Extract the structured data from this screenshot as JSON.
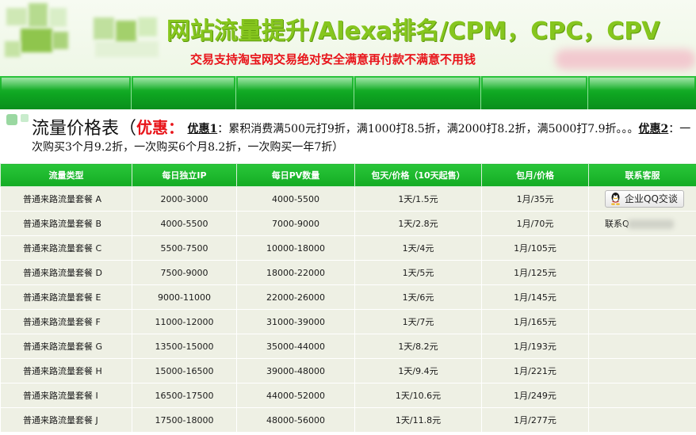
{
  "banner": {
    "title": "网站流量提升/Alexa排名/CPM，CPC，CPV",
    "subtitle": "交易支持淘宝网交易绝对安全满意再付款不满意不用钱"
  },
  "pricing": {
    "heading": "流量价格表",
    "open_paren": "（",
    "discount_label": "优惠：",
    "promo1_label": "优惠1",
    "promo1_text": "：累积消费满500元打9折，满1000打8.5折，满2000打8.2折，满5000打7.9折。。。",
    "promo2_label": "优惠2",
    "promo2_text": "：一次购买3个月9.2折，一次购买6个月8.2折，一次购买一年7折）"
  },
  "table": {
    "headers": [
      "流量类型",
      "每日独立IP",
      "每日PV数量",
      "包天/价格（10天起售）",
      "包月/价格",
      "联系客服"
    ],
    "rows": [
      {
        "type": "普通来路流量套餐 A",
        "ip": "2000-3000",
        "pv": "4000-5500",
        "day": "1天/1.5元",
        "month": "1月/35元"
      },
      {
        "type": "普通来路流量套餐 B",
        "ip": "4000-5500",
        "pv": "7000-9000",
        "day": "1天/2.8元",
        "month": "1月/70元"
      },
      {
        "type": "普通来路流量套餐 C",
        "ip": "5500-7500",
        "pv": "10000-18000",
        "day": "1天/4元",
        "month": "1月/105元"
      },
      {
        "type": "普通来路流量套餐 D",
        "ip": "7500-9000",
        "pv": "18000-22000",
        "day": "1天/5元",
        "month": "1月/125元"
      },
      {
        "type": "普通来路流量套餐 E",
        "ip": "9000-11000",
        "pv": "22000-26000",
        "day": "1天/6元",
        "month": "1月/145元"
      },
      {
        "type": "普通来路流量套餐 F",
        "ip": "11000-12000",
        "pv": "31000-39000",
        "day": "1天/7元",
        "month": "1月/165元"
      },
      {
        "type": "普通来路流量套餐 G",
        "ip": "13500-15000",
        "pv": "35000-44000",
        "day": "1天/8.2元",
        "month": "1月/193元"
      },
      {
        "type": "普通来路流量套餐 H",
        "ip": "15000-16500",
        "pv": "39000-48000",
        "day": "1天/9.4元",
        "month": "1月/221元"
      },
      {
        "type": "普通来路流量套餐 I",
        "ip": "16500-17500",
        "pv": "44000-52000",
        "day": "1天/10.6元",
        "month": "1月/249元"
      },
      {
        "type": "普通来路流量套餐 J",
        "ip": "17500-18000",
        "pv": "48000-56000",
        "day": "1天/11.8元",
        "month": "1月/277元"
      }
    ],
    "qq_button_label": "企业QQ交谈",
    "qq_icon": "qq-penguin-icon",
    "contact_prefix": "联系Q"
  },
  "colors": {
    "nav_green": "#0ea521",
    "header_green": "#13ab23",
    "banner_title": "#86c61e",
    "accent_red": "#e8141a",
    "row_bg": "#eef0e4"
  }
}
